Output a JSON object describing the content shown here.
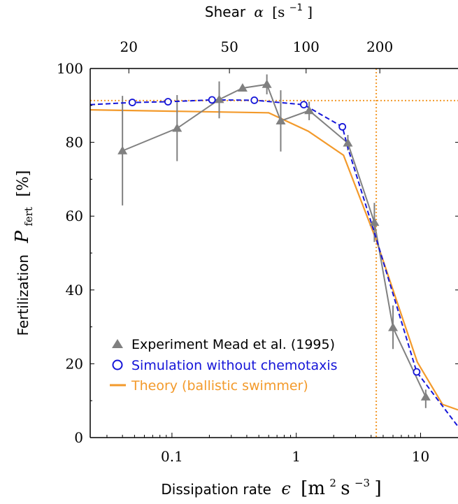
{
  "chart_data": {
    "type": "line",
    "x_scale": "log",
    "xlim": [
      0.022,
      20
    ],
    "ylim": [
      0,
      100
    ],
    "top_xlabel": {
      "text": "Shear",
      "symbol": "α",
      "unit": "[s",
      "unit_exp": "−1",
      "unit_close": "]"
    },
    "xlabel": {
      "text": "Dissipation rate",
      "symbol": "ϵ",
      "unit": "[m",
      "exp1": "2",
      "mid": "s",
      "exp2": "−3",
      "close": "]"
    },
    "ylabel": {
      "text": "Fertilization",
      "symbol": "P",
      "sub": "fert",
      "unit": "[%]"
    },
    "x_ticks": [
      {
        "value": 0.1,
        "label": "0.1"
      },
      {
        "value": 1,
        "label": "1"
      },
      {
        "value": 10,
        "label": "10"
      }
    ],
    "top_ticks": [
      {
        "value": 0.045,
        "label": "20"
      },
      {
        "value": 0.29,
        "label": "50"
      },
      {
        "value": 1.2,
        "label": "100"
      },
      {
        "value": 4.7,
        "label": "200"
      }
    ],
    "y_ticks": [
      {
        "value": 0,
        "label": "0"
      },
      {
        "value": 20,
        "label": "20"
      },
      {
        "value": 40,
        "label": "40"
      },
      {
        "value": 60,
        "label": "60"
      },
      {
        "value": 80,
        "label": "80"
      },
      {
        "value": 100,
        "label": "100"
      }
    ],
    "reference_lines": {
      "x": 4.4,
      "y": 91.3,
      "color": "#f39a2b"
    },
    "series": [
      {
        "name": "Experiment Mead et al. (1995)",
        "style": "triangle-line-errorbar",
        "color": "#808080",
        "x": [
          0.04,
          0.11,
          0.24,
          0.37,
          0.58,
          0.75,
          1.27,
          2.6,
          4.25,
          6.0,
          11.0
        ],
        "y": [
          77.7,
          83.8,
          91.6,
          94.7,
          95.7,
          85.8,
          88.6,
          79.8,
          58.3,
          29.8,
          11.0
        ],
        "err_low": [
          62.9,
          74.9,
          86.5,
          94.1,
          93.0,
          77.5,
          86.0,
          77.8,
          53.0,
          24.0,
          8.0
        ],
        "err_high": [
          92.6,
          92.8,
          96.5,
          95.3,
          98.4,
          94.1,
          91.0,
          82.0,
          63.6,
          35.8,
          13.0
        ]
      },
      {
        "name": "Simulation without chemotaxis",
        "style": "circle-dashed",
        "color": "#1515d8",
        "x_line": [
          0.022,
          0.048,
          0.093,
          0.21,
          0.46,
          1.15,
          2.35,
          2.6,
          4.3,
          9.3,
          20.0
        ],
        "y_line": [
          90.2,
          90.8,
          91.0,
          91.5,
          91.4,
          90.2,
          84.2,
          78.5,
          55.0,
          17.8,
          3.0
        ],
        "x": [
          0.048,
          0.093,
          0.21,
          0.46,
          1.15,
          2.35,
          9.3
        ],
        "y": [
          90.8,
          91.0,
          91.5,
          91.4,
          90.2,
          84.2,
          17.8
        ]
      },
      {
        "name": "Theory (ballistic swimmer)",
        "style": "line",
        "color": "#f39a2b",
        "x": [
          0.022,
          0.6,
          1.25,
          2.4,
          4.4,
          9.4,
          15.0,
          20.0
        ],
        "y": [
          88.8,
          88.0,
          83.0,
          76.5,
          53.5,
          20.5,
          9.0,
          7.5
        ]
      }
    ],
    "legend": {
      "position": "lower-left"
    }
  }
}
